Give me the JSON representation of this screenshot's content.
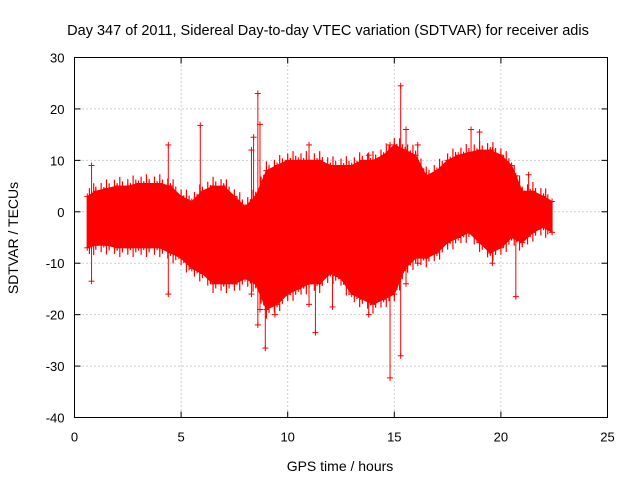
{
  "chart_data": {
    "type": "scatter",
    "title": "Day 347 of 2011, Sidereal Day-to-day VTEC variation (SDTVAR) for receiver adis",
    "xlabel": "GPS time / hours",
    "ylabel": "SDTVAR / TECUs",
    "xlim": [
      0,
      25
    ],
    "ylim": [
      -40,
      30
    ],
    "xticks": [
      0,
      5,
      10,
      15,
      20,
      25
    ],
    "yticks": [
      -40,
      -30,
      -20,
      -10,
      0,
      10,
      20,
      30
    ],
    "xtick_labels": [
      "0",
      "5",
      "10",
      "15",
      "20",
      "25"
    ],
    "ytick_labels": [
      "-40",
      "-30",
      "-20",
      "-10",
      "0",
      "10",
      "20",
      "30"
    ],
    "grid": true,
    "legend": "none",
    "series": [
      {
        "name": "SDTVAR",
        "color": "#ff0000",
        "marker": "plus",
        "envelope": {
          "x": [
            0.6,
            1.0,
            1.5,
            2.0,
            2.5,
            3.0,
            3.5,
            4.0,
            4.5,
            5.0,
            5.5,
            6.0,
            6.5,
            7.0,
            7.5,
            8.0,
            8.5,
            9.0,
            9.5,
            10.0,
            10.5,
            11.0,
            11.5,
            12.0,
            12.5,
            13.0,
            13.5,
            14.0,
            14.5,
            15.0,
            15.5,
            16.0,
            16.5,
            17.0,
            17.5,
            18.0,
            18.5,
            19.0,
            19.5,
            20.0,
            20.5,
            21.0,
            21.5,
            22.0,
            22.4
          ],
          "upper": [
            3.0,
            4.0,
            4.5,
            5.0,
            5.0,
            5.5,
            5.5,
            5.5,
            5.0,
            3.0,
            2.0,
            4.0,
            5.0,
            5.0,
            3.0,
            1.0,
            3.0,
            8.0,
            9.0,
            10.0,
            10.0,
            10.0,
            10.0,
            9.0,
            9.0,
            9.0,
            10.0,
            10.0,
            11.0,
            13.0,
            12.0,
            11.0,
            7.0,
            8.0,
            10.0,
            11.0,
            11.5,
            12.0,
            12.0,
            11.0,
            9.0,
            4.0,
            4.0,
            3.0,
            2.0
          ],
          "lower": [
            -7.0,
            -6.5,
            -6.5,
            -7.0,
            -7.0,
            -7.0,
            -7.0,
            -7.0,
            -8.0,
            -9.0,
            -11.0,
            -12.0,
            -14.0,
            -14.0,
            -14.0,
            -13.0,
            -14.0,
            -19.0,
            -18.0,
            -16.0,
            -15.0,
            -14.0,
            -14.0,
            -12.0,
            -13.0,
            -16.0,
            -17.0,
            -18.0,
            -17.0,
            -16.0,
            -11.0,
            -9.0,
            -9.0,
            -8.0,
            -6.0,
            -5.0,
            -4.0,
            -6.0,
            -8.0,
            -7.0,
            -5.0,
            -6.0,
            -4.0,
            -3.0,
            -4.0
          ]
        },
        "spikes": [
          {
            "x": 0.8,
            "low": -13.5,
            "high": 9.0
          },
          {
            "x": 4.4,
            "low": -16.0,
            "high": 13.0
          },
          {
            "x": 5.9,
            "low": -8.0,
            "high": 16.8
          },
          {
            "x": 8.3,
            "low": -16.0,
            "high": 12.0
          },
          {
            "x": 8.4,
            "low": -9.0,
            "high": 14.5
          },
          {
            "x": 8.6,
            "low": -22.0,
            "high": 23.0
          },
          {
            "x": 8.7,
            "low": -19.0,
            "high": 17.0
          },
          {
            "x": 8.95,
            "low": -26.5,
            "high": 6.0
          },
          {
            "x": 9.4,
            "low": -20.0,
            "high": 7.0
          },
          {
            "x": 11.0,
            "low": -18.0,
            "high": 13.0
          },
          {
            "x": 11.3,
            "low": -23.5,
            "high": 7.0
          },
          {
            "x": 12.1,
            "low": -18.5,
            "high": 8.0
          },
          {
            "x": 13.8,
            "low": -20.0,
            "high": 11.0
          },
          {
            "x": 14.8,
            "low": -32.3,
            "high": 13.0
          },
          {
            "x": 15.3,
            "low": -28.0,
            "high": 24.5
          },
          {
            "x": 15.55,
            "low": -14.0,
            "high": 16.0
          },
          {
            "x": 16.1,
            "low": -10.0,
            "high": 13.0
          },
          {
            "x": 18.6,
            "low": -3.0,
            "high": 16.0
          },
          {
            "x": 19.0,
            "low": -6.0,
            "high": 15.5
          },
          {
            "x": 19.6,
            "low": -10.0,
            "high": 12.0
          },
          {
            "x": 20.7,
            "low": -16.5,
            "high": 7.0
          },
          {
            "x": 21.3,
            "low": -3.0,
            "high": 7.2
          }
        ]
      }
    ]
  }
}
